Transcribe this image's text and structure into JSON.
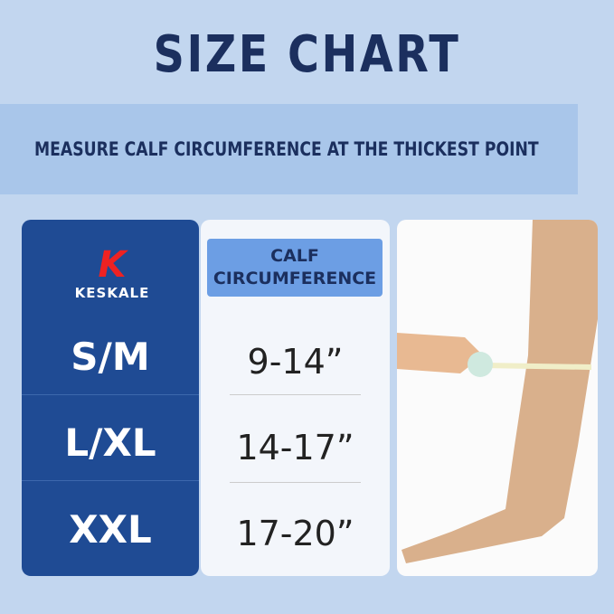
{
  "title": "SIZE CHART",
  "instruction": "MEASURE CALF CIRCUMFERENCE AT THE THICKEST POINT",
  "brand": "KESKALE",
  "column_header": "CALF CIRCUMFERENCE",
  "rows": [
    {
      "size": "S/M",
      "range": "9-14”"
    },
    {
      "size": "L/XL",
      "range": "14-17”"
    },
    {
      "size": "XXL",
      "range": "17-20”"
    }
  ]
}
